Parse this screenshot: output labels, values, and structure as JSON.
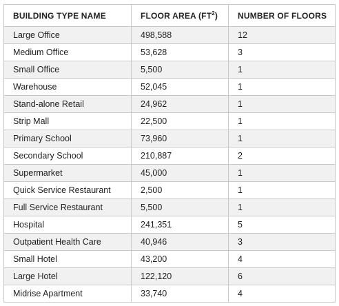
{
  "headers": {
    "building_type": "BUILDING TYPE NAME",
    "floor_area_prefix": "FLOOR AREA (FT",
    "floor_area_exp": "2",
    "floor_area_suffix": ")",
    "floors": "NUMBER OF FLOORS"
  },
  "rows": [
    {
      "name": "Large Office",
      "area": "498,588",
      "floors": "12"
    },
    {
      "name": "Medium Office",
      "area": "53,628",
      "floors": "3"
    },
    {
      "name": "Small Office",
      "area": "5,500",
      "floors": "1"
    },
    {
      "name": "Warehouse",
      "area": "52,045",
      "floors": "1"
    },
    {
      "name": "Stand-alone Retail",
      "area": "24,962",
      "floors": "1"
    },
    {
      "name": "Strip Mall",
      "area": "22,500",
      "floors": "1"
    },
    {
      "name": "Primary School",
      "area": "73,960",
      "floors": "1"
    },
    {
      "name": "Secondary School",
      "area": "210,887",
      "floors": "2"
    },
    {
      "name": "Supermarket",
      "area": "45,000",
      "floors": "1"
    },
    {
      "name": "Quick Service Restaurant",
      "area": "2,500",
      "floors": "1"
    },
    {
      "name": "Full Service Restaurant",
      "area": "5,500",
      "floors": "1"
    },
    {
      "name": "Hospital",
      "area": "241,351",
      "floors": "5"
    },
    {
      "name": "Outpatient Health Care",
      "area": "40,946",
      "floors": "3"
    },
    {
      "name": "Small Hotel",
      "area": "43,200",
      "floors": "4"
    },
    {
      "name": "Large Hotel",
      "area": "122,120",
      "floors": "6"
    },
    {
      "name": "Midrise Apartment",
      "area": "33,740",
      "floors": "4"
    }
  ],
  "colors": {
    "shaded_row": "#f1f1f1",
    "plain_row": "#ffffff",
    "border": "#c8c8c8",
    "text": "#1f1f1f"
  }
}
